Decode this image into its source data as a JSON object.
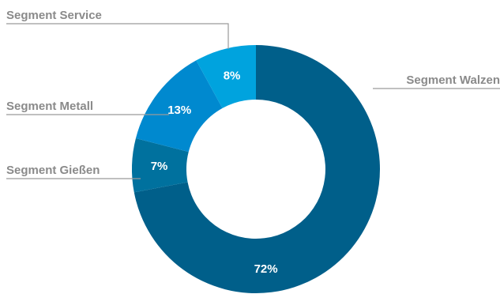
{
  "chart_data": {
    "type": "pie",
    "variant": "donut",
    "slices": [
      {
        "name": "Segment Walzen",
        "value": 72,
        "label": "72%",
        "color": "#005f8a"
      },
      {
        "name": "Segment Gießen",
        "value": 7,
        "label": "7%",
        "color": "#00719e"
      },
      {
        "name": "Segment Metall",
        "value": 13,
        "label": "13%",
        "color": "#0089cf"
      },
      {
        "name": "Segment Service",
        "value": 8,
        "label": "8%",
        "color": "#00a3de"
      }
    ],
    "legend": "leader-line labels"
  }
}
